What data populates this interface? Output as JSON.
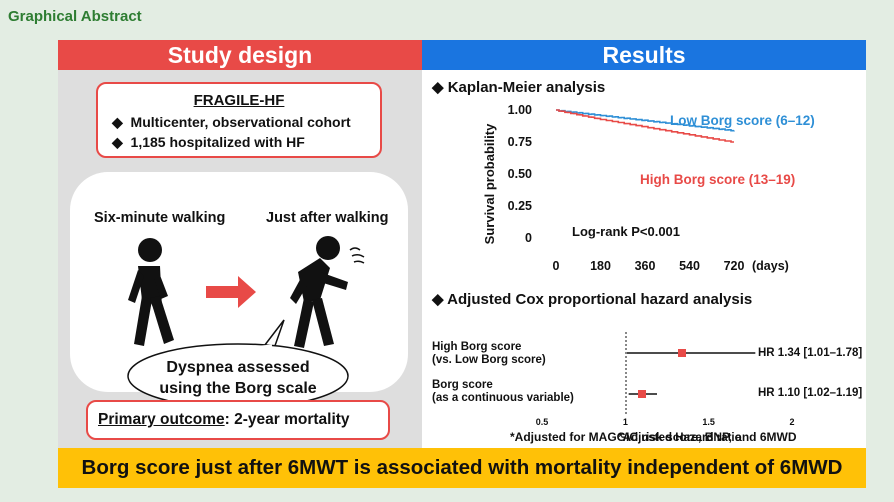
{
  "page_title": "Graphical Abstract",
  "left": {
    "header": "Study design",
    "cohort": {
      "title": "FRAGILE-HF",
      "bullets": [
        "Multicenter, observational cohort",
        "1,185 hospitalized with HF"
      ]
    },
    "labels": {
      "six_minute": "Six-minute walking",
      "after": "Just after walking"
    },
    "speech": {
      "line1": "Dyspnea assessed",
      "line2": "using the Borg scale"
    },
    "outcome": {
      "label": "Primary outcome",
      "value": ": 2-year mortality"
    },
    "colors": {
      "accent": "#e84a47"
    }
  },
  "right": {
    "header": "Results",
    "km": {
      "section_title": "Kaplan-Meier analysis",
      "ylabel": "Survival probability",
      "yticks": [
        "1.00",
        "0.75",
        "0.50",
        "0.25",
        "0"
      ],
      "xticks": [
        "0",
        "180",
        "360",
        "540",
        "720"
      ],
      "xunit": "(days)",
      "low_label": "Low Borg score (6–12)",
      "high_label": "High Borg score (13–19)",
      "logrank": "Log-rank P<0.001"
    },
    "cox": {
      "section_title": "Adjusted Cox proportional hazard analysis",
      "row1": {
        "line1": "High Borg score",
        "line2": "(vs. Low Borg score)",
        "hr": "HR 1.34 [1.01–1.78]"
      },
      "row2": {
        "line1": "Borg score",
        "line2": "(as a continuous variable)",
        "hr": "HR 1.10 [1.02–1.19]"
      },
      "xticks": [
        "0.5",
        "1",
        "1.5",
        "2"
      ],
      "xlabel": "*Adjusted Hazard ratio",
      "footnote": "*Adjusted for MAGGIC risk score, BNP, and 6MWD"
    }
  },
  "conclusion": "Borg score just after 6MWT is associated with mortality independent of 6MWD",
  "chart_data": [
    {
      "type": "line",
      "x": [
        0,
        180,
        360,
        540,
        720
      ],
      "series": [
        {
          "name": "Low Borg score (6–12)",
          "color": "#2e8fd6",
          "values": [
            1.0,
            0.96,
            0.92,
            0.88,
            0.84
          ]
        },
        {
          "name": "High Borg score (13–19)",
          "color": "#e84a47",
          "values": [
            1.0,
            0.93,
            0.87,
            0.81,
            0.75
          ]
        }
      ],
      "ylabel": "Survival probability",
      "xlabel": "(days)",
      "ylim": [
        0,
        1.0
      ],
      "xlim": [
        0,
        720
      ]
    },
    {
      "type": "scatter",
      "title": "Adjusted Cox proportional hazard analysis",
      "rows": [
        {
          "name": "High Borg score (vs. Low Borg score)",
          "hr": 1.34,
          "lo": 1.01,
          "hi": 1.78
        },
        {
          "name": "Borg score (as a continuous variable)",
          "hr": 1.1,
          "lo": 1.02,
          "hi": 1.19
        }
      ],
      "xlabel": "*Adjusted Hazard ratio",
      "xlim": [
        0.5,
        2.0
      ]
    }
  ]
}
